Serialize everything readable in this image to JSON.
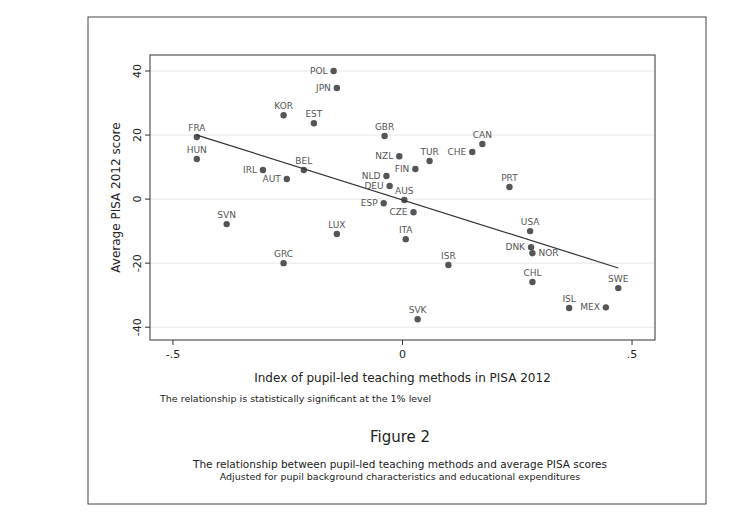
{
  "chart_data": {
    "type": "scatter",
    "title": "Figure 2",
    "subtitle": [
      "The relationship between pupil-led teaching methods and average PISA scores",
      "Adjusted for pupil background characteristics and educational expenditures"
    ],
    "x_label": "Index of pupil-led teaching methods in PISA 2012",
    "y_label": "Average PISA 2012 score",
    "annotations": [
      "The relationship is statistically significant at the 1% level"
    ],
    "xlim": [
      -0.55,
      0.55
    ],
    "ylim": [
      -44,
      45
    ],
    "xticks": [
      {
        "value": -0.5,
        "label": "-.5"
      },
      0,
      {
        "value": 0.5,
        "label": ".5"
      }
    ],
    "yticks": [
      -40,
      -20,
      0,
      20,
      40
    ],
    "grid": true,
    "series": [
      {
        "type": "scatter",
        "color": "#555555",
        "marker": "circle",
        "labels": [
          "POL",
          "JPN",
          "KOR",
          "EST",
          "FRA",
          "GBR",
          "CAN",
          "CHE",
          "NZL",
          "TUR",
          "HUN",
          "FIN",
          "IRL",
          "BEL",
          "AUT",
          "NLD",
          "DEU",
          "PRT",
          "AUS",
          "ESP",
          "CZE",
          "SVN",
          "USA",
          "LUX",
          "ITA",
          "DNK",
          "NOR",
          "GRC",
          "ISR",
          "CHL",
          "SWE",
          "ISL",
          "MEX",
          "SVK"
        ],
        "x": [
          -0.15,
          -0.143,
          -0.259,
          -0.193,
          -0.448,
          -0.039,
          0.174,
          0.152,
          -0.007,
          0.059,
          -0.448,
          0.028,
          -0.304,
          -0.215,
          -0.252,
          -0.035,
          -0.028,
          0.233,
          0.004,
          -0.041,
          0.024,
          -0.383,
          0.278,
          -0.143,
          0.007,
          0.28,
          0.283,
          -0.259,
          0.1,
          0.283,
          0.47,
          0.363,
          0.443,
          0.033
        ],
        "values": [
          40,
          34.7,
          26.2,
          23.7,
          19.4,
          19.7,
          17.2,
          14.7,
          13.4,
          11.9,
          12.5,
          9.4,
          9.1,
          9.1,
          6.3,
          7.2,
          4.1,
          3.8,
          -0.3,
          -1.3,
          -4.1,
          -7.8,
          -10,
          -10.9,
          -12.5,
          -15,
          -16.9,
          -20,
          -20.6,
          -25.9,
          -27.8,
          -34,
          -33.8,
          -37.5
        ]
      },
      {
        "type": "line",
        "color": "#333333",
        "line_style": "solid",
        "x": [
          -0.448,
          0.47
        ],
        "values": [
          20,
          -21.5
        ]
      }
    ]
  }
}
